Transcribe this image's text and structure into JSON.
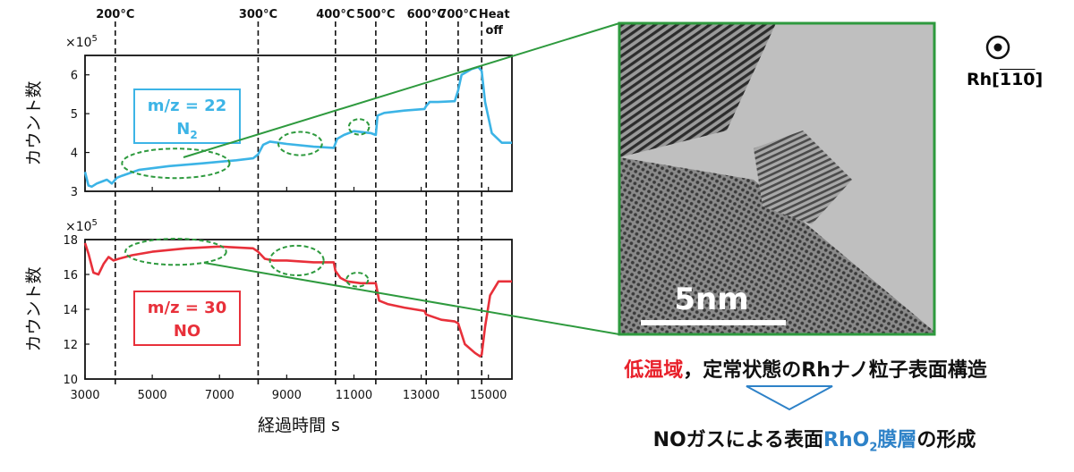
{
  "chart_data": {
    "type": "line",
    "xlabel": "経過時間 s",
    "x_ticks": [
      3000,
      5000,
      7000,
      9000,
      11000,
      13000,
      15000
    ],
    "xlim": [
      3000,
      15700
    ],
    "temperature_markers": [
      {
        "x": 3900,
        "label": "200°C"
      },
      {
        "x": 8150,
        "label": "300°C"
      },
      {
        "x": 10450,
        "label": "400°C"
      },
      {
        "x": 11650,
        "label": "500°C"
      },
      {
        "x": 13150,
        "label": "600°C"
      },
      {
        "x": 14100,
        "label": "700°C"
      },
      {
        "x": 14800,
        "label": "Heat off"
      }
    ],
    "panels": [
      {
        "ylabel": "カウント数",
        "multiplier": "×10",
        "multiplier_exp": "5",
        "ylim": [
          3,
          6.5
        ],
        "y_ticks": [
          3,
          4,
          5,
          6
        ],
        "legend_line1": "m/z = 22",
        "legend_line2": "N",
        "legend_line2_sub": "2",
        "color": "#3cb4e6",
        "x": [
          3000,
          3100,
          3200,
          3350,
          3500,
          3650,
          3800,
          3950,
          4100,
          4600,
          5500,
          6500,
          7500,
          8000,
          8150,
          8300,
          8500,
          9000,
          9800,
          10400,
          10500,
          10700,
          11000,
          11500,
          11650,
          11700,
          11900,
          12500,
          13100,
          13150,
          13250,
          13500,
          14000,
          14100,
          14200,
          14500,
          14700,
          14800,
          14900,
          15100,
          15400,
          15700
        ],
        "y": [
          3.5,
          3.15,
          3.12,
          3.2,
          3.25,
          3.3,
          3.2,
          3.35,
          3.4,
          3.55,
          3.65,
          3.72,
          3.8,
          3.85,
          3.95,
          4.2,
          4.28,
          4.22,
          4.15,
          4.12,
          4.35,
          4.45,
          4.55,
          4.5,
          4.45,
          4.95,
          5.02,
          5.08,
          5.12,
          5.2,
          5.3,
          5.3,
          5.32,
          5.6,
          6.0,
          6.15,
          6.2,
          6.1,
          5.3,
          4.5,
          4.25,
          4.25
        ],
        "ovals": [
          {
            "cx": 5700,
            "cy": 3.72,
            "rx": 1600,
            "ry": 0.38
          },
          {
            "cx": 9400,
            "cy": 4.23,
            "rx": 650,
            "ry": 0.3
          },
          {
            "cx": 11150,
            "cy": 4.66,
            "rx": 300,
            "ry": 0.2
          }
        ]
      },
      {
        "ylabel": "カウント数",
        "multiplier": "×10",
        "multiplier_exp": "5",
        "ylim": [
          10,
          18
        ],
        "y_ticks": [
          10,
          12,
          14,
          16,
          18
        ],
        "legend_line1": "m/z = 30",
        "legend_line2": "NO",
        "color": "#e8303a",
        "x": [
          3000,
          3100,
          3250,
          3400,
          3550,
          3700,
          3850,
          4000,
          4400,
          5000,
          6000,
          7000,
          8000,
          8150,
          8350,
          8600,
          9000,
          9800,
          10400,
          10450,
          10600,
          10800,
          11200,
          11600,
          11650,
          11750,
          12000,
          12500,
          13100,
          13150,
          13300,
          13600,
          14000,
          14100,
          14300,
          14600,
          14750,
          14800,
          14900,
          15050,
          15300,
          15700
        ],
        "y": [
          17.8,
          17.2,
          16.1,
          16.0,
          16.6,
          17.0,
          16.8,
          16.9,
          17.1,
          17.3,
          17.5,
          17.6,
          17.5,
          17.3,
          16.9,
          16.8,
          16.8,
          16.7,
          16.7,
          16.2,
          15.8,
          15.6,
          15.5,
          15.5,
          15.5,
          14.5,
          14.3,
          14.1,
          13.9,
          13.7,
          13.6,
          13.4,
          13.3,
          13.2,
          12.0,
          11.5,
          11.3,
          11.4,
          13.0,
          14.8,
          15.6,
          15.6
        ],
        "ovals": [
          {
            "cx": 5700,
            "cy": 17.3,
            "rx": 1500,
            "ry": 0.75
          },
          {
            "cx": 9300,
            "cy": 16.8,
            "rx": 800,
            "ry": 0.85
          },
          {
            "cx": 11100,
            "cy": 15.7,
            "rx": 320,
            "ry": 0.4
          }
        ]
      }
    ]
  },
  "micrograph": {
    "scale_label": "5nm",
    "frame_color": "#2e9a3e"
  },
  "zone_axis": {
    "prefix": "Rh",
    "index": "110"
  },
  "caption_line1": {
    "red": "低温域",
    "rest": "，定常状態のRhナノ粒子表面構造"
  },
  "caption_line2": {
    "pre": "NOガスによる表面",
    "blue": "RhO",
    "blue_sub": "2",
    "blue_post": "膜層",
    "post": "の形成"
  },
  "arrow_color": "#2e82c8"
}
